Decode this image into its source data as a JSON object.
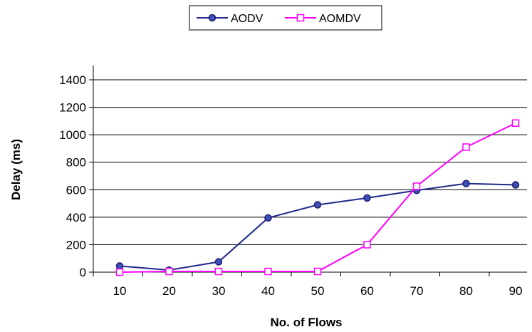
{
  "chart_data": {
    "type": "line",
    "xlabel": "No. of Flows",
    "ylabel": "Delay (ms)",
    "categories": [
      "10",
      "20",
      "30",
      "40",
      "50",
      "60",
      "70",
      "80",
      "90"
    ],
    "ylim": [
      0,
      1400
    ],
    "yticks": [
      0,
      200,
      400,
      600,
      800,
      1000,
      1200,
      1400
    ],
    "grid": "horizontal",
    "legend_position": "top-center",
    "series": [
      {
        "name": "AODV",
        "color": "#1f2a8a",
        "marker": "circle",
        "values": [
          45,
          15,
          75,
          395,
          490,
          540,
          595,
          645,
          635
        ]
      },
      {
        "name": "AOMDV",
        "color": "#ff00ff",
        "marker": "square",
        "values": [
          0,
          5,
          5,
          5,
          5,
          200,
          625,
          910,
          1085
        ]
      }
    ]
  }
}
